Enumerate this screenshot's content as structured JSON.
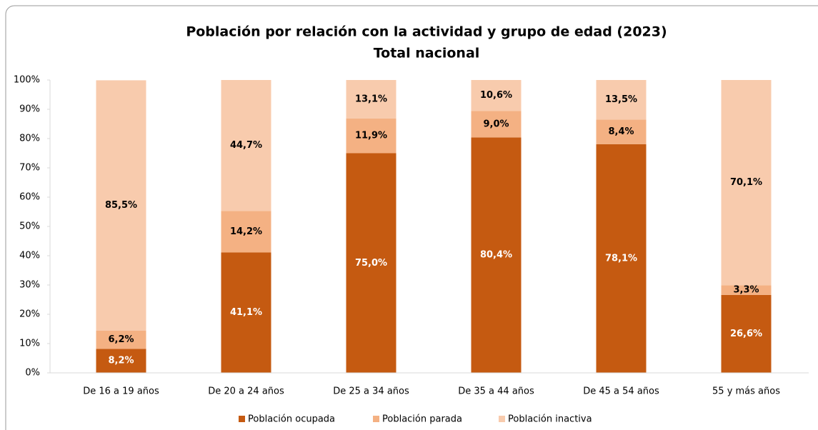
{
  "chart_data": {
    "type": "stacked_bar",
    "title": "Población por relación con la actividad y grupo de edad (2023)",
    "subtitle": "Total nacional",
    "categories": [
      "De 16 a 19 años",
      "De 20 a 24 años",
      "De 25 a 34 años",
      "De 35 a 44 años",
      "De 45 a 54 años",
      "55 y más años"
    ],
    "series": [
      {
        "name": "Población ocupada",
        "color": "#c55a11",
        "values": [
          8.2,
          41.1,
          75.0,
          80.4,
          78.1,
          26.6
        ],
        "value_labels": [
          "8,2%",
          "41,1%",
          "75,0%",
          "80,4%",
          "78,1%",
          "26,6%"
        ]
      },
      {
        "name": "Población parada",
        "color": "#f4b183",
        "values": [
          6.2,
          14.2,
          11.9,
          9.0,
          8.4,
          3.3
        ],
        "value_labels": [
          "6,2%",
          "14,2%",
          "11,9%",
          "9,0%",
          "8,4%",
          "3,3%"
        ]
      },
      {
        "name": "Población inactiva",
        "color": "#f8cbad",
        "values": [
          85.5,
          44.7,
          13.1,
          10.6,
          13.5,
          70.1
        ],
        "value_labels": [
          "85,5%",
          "44,7%",
          "13,1%",
          "10,6%",
          "13,5%",
          "70,1%"
        ]
      }
    ],
    "ylim": [
      0,
      100
    ],
    "yticks": [
      {
        "value": 0,
        "label": "0%"
      },
      {
        "value": 10,
        "label": "10%"
      },
      {
        "value": 20,
        "label": "20%"
      },
      {
        "value": 30,
        "label": "30%"
      },
      {
        "value": 40,
        "label": "40%"
      },
      {
        "value": 50,
        "label": "50%"
      },
      {
        "value": 60,
        "label": "60%"
      },
      {
        "value": 70,
        "label": "70%"
      },
      {
        "value": 80,
        "label": "80%"
      },
      {
        "value": 90,
        "label": "90%"
      },
      {
        "value": 100,
        "label": "100%"
      }
    ],
    "legend": "bottom"
  }
}
